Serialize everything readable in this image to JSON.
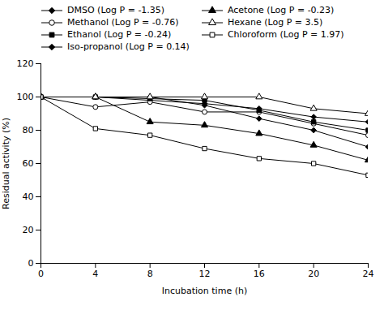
{
  "chart_data": {
    "type": "line",
    "x": [
      0,
      4,
      8,
      12,
      16,
      20,
      24
    ],
    "series": [
      {
        "name": "DMSO (Log P = -1.35)",
        "color": "#000000",
        "marker": "diamond",
        "values": [
          100,
          100,
          98,
          96,
          93,
          88,
          85
        ]
      },
      {
        "name": "Methanol (Log P = -0.76)",
        "color": "#000000",
        "marker": "open-circle",
        "values": [
          100,
          94,
          97,
          91,
          91,
          84,
          77
        ]
      },
      {
        "name": "Ethanol (Log P = -0.24)",
        "color": "#000000",
        "marker": "square",
        "values": [
          100,
          100,
          99,
          98,
          92,
          85,
          80
        ]
      },
      {
        "name": "Iso-propanol (Log P = 0.14)",
        "color": "#000000",
        "marker": "diamond",
        "values": [
          100,
          100,
          100,
          95,
          87,
          80,
          70
        ]
      },
      {
        "name": "Acetone (Log P = -0.23)",
        "color": "#000000",
        "marker": "triangle",
        "values": [
          100,
          100,
          85,
          83,
          78,
          71,
          62
        ]
      },
      {
        "name": "Hexane (Log P = 3.5)",
        "color": "#000000",
        "marker": "open-triangle",
        "values": [
          100,
          100,
          100,
          100,
          100,
          93,
          90
        ]
      },
      {
        "name": "Chloroform (Log P = 1.97)",
        "color": "#000000",
        "marker": "open-square",
        "values": [
          100,
          81,
          77,
          69,
          63,
          60,
          53
        ]
      }
    ],
    "xlabel": "Incubation time (h)",
    "ylabel": "Residual activity (%)",
    "xlim": [
      0,
      24
    ],
    "ylim": [
      0,
      120
    ],
    "xticks": [
      0,
      4,
      8,
      12,
      16,
      20,
      24
    ],
    "yticks": [
      0,
      20,
      40,
      60,
      80,
      100,
      120
    ],
    "grid": false,
    "legend": "top"
  }
}
